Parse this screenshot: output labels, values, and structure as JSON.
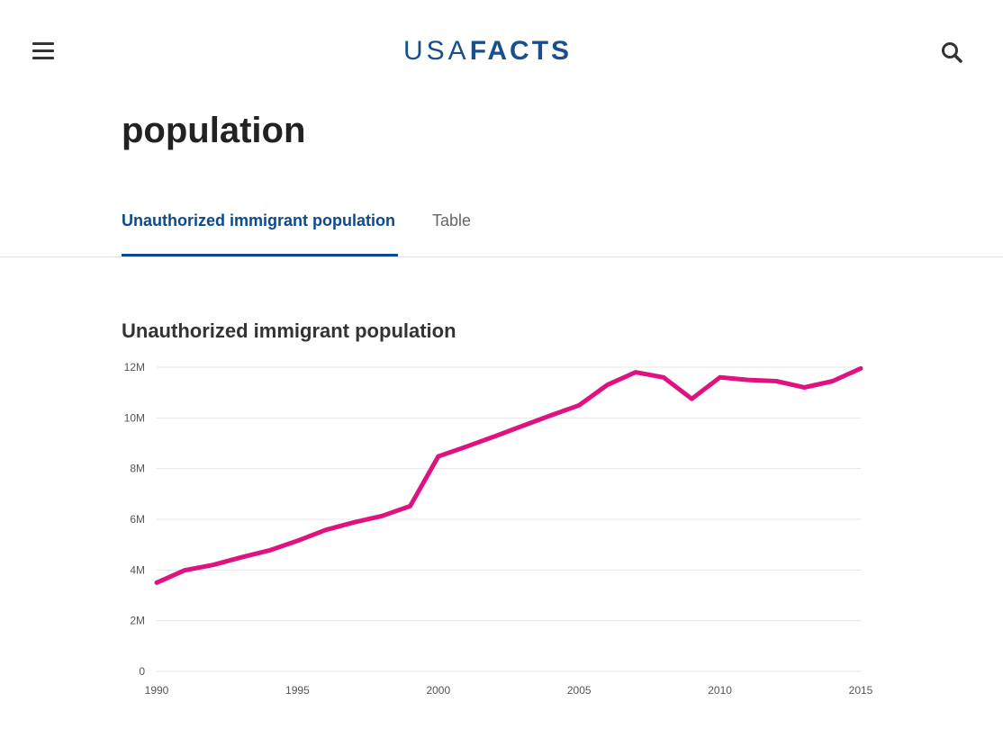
{
  "header": {
    "logo_usa": "USA",
    "logo_facts": "FACTS",
    "menu_icon": "hamburger-menu-icon",
    "search_icon": "search-icon"
  },
  "page": {
    "title_visible": "population"
  },
  "tabs": [
    {
      "label": "Unauthorized immigrant population",
      "active": true
    },
    {
      "label": "Table",
      "active": false
    }
  ],
  "colors": {
    "brand": "#1a4f8c",
    "active_tab": "#0b4a8b",
    "series": "#e0127f"
  },
  "chart_data": {
    "type": "line",
    "title": "Unauthorized immigrant population",
    "xlabel": "",
    "ylabel": "",
    "x_ticks": [
      "1990",
      "1995",
      "2000",
      "2005",
      "2010",
      "2015"
    ],
    "y_ticks": [
      "0",
      "2M",
      "4M",
      "6M",
      "8M",
      "10M",
      "12M"
    ],
    "xlim": [
      1990,
      2015
    ],
    "ylim": [
      0,
      12000000
    ],
    "grid": "horizontal",
    "series": [
      {
        "x": [
          1990,
          1991,
          1992,
          1993,
          1994,
          1995,
          1996,
          1997,
          1998,
          1999,
          2000,
          2001,
          2002,
          2003,
          2004,
          2005,
          2006,
          2007,
          2008,
          2009,
          2010,
          2011,
          2012,
          2013,
          2014,
          2015
        ],
        "values": [
          3500000,
          3990000,
          4200000,
          4500000,
          4770000,
          5150000,
          5580000,
          5880000,
          6130000,
          6520000,
          8480000,
          8870000,
          9270000,
          9690000,
          10100000,
          10500000,
          11300000,
          11800000,
          11600000,
          10750000,
          11600000,
          11500000,
          11450000,
          11200000,
          11450000,
          11950000
        ]
      }
    ]
  }
}
